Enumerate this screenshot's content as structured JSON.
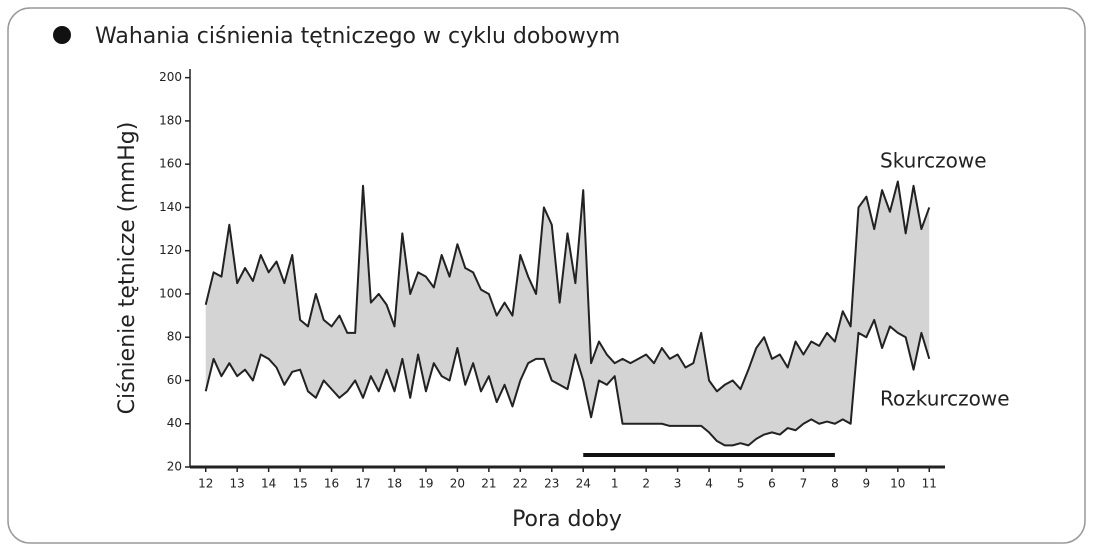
{
  "chart_data": {
    "type": "line",
    "title": "Wahania ciśnienia tętniczego w cyklu dobowym",
    "y_label": "Ciśnienie tętnicze (mmHg)",
    "x_label": "Pora doby",
    "annotations": [
      "Skurczowe",
      "Rozkurczowe"
    ],
    "x": [
      0,
      0.25,
      0.5,
      0.75,
      1,
      1.25,
      1.5,
      1.75,
      2,
      2.25,
      2.5,
      2.75,
      3,
      3.25,
      3.5,
      3.75,
      4,
      4.25,
      4.5,
      4.75,
      5,
      5.25,
      5.5,
      5.75,
      6,
      6.25,
      6.5,
      6.75,
      7,
      7.25,
      7.5,
      7.75,
      8,
      8.25,
      8.5,
      8.75,
      9,
      9.25,
      9.5,
      9.75,
      10,
      10.25,
      10.5,
      10.75,
      11,
      11.25,
      11.5,
      11.75,
      12,
      12.25,
      12.5,
      12.75,
      13,
      13.25,
      13.5,
      13.75,
      14,
      14.25,
      14.5,
      14.75,
      15,
      15.25,
      15.5,
      15.75,
      16,
      16.25,
      16.5,
      16.75,
      17,
      17.25,
      17.5,
      17.75,
      18,
      18.25,
      18.5,
      18.75,
      19,
      19.25,
      19.5,
      19.75,
      20,
      20.25,
      20.5,
      20.75,
      21,
      21.25,
      21.5,
      21.75,
      22,
      22.25,
      22.5,
      22.75,
      23
    ],
    "series": [
      {
        "name": "Skurczowe",
        "color": "#222222",
        "values": [
          95,
          110,
          108,
          132,
          105,
          112,
          106,
          118,
          110,
          115,
          105,
          118,
          88,
          85,
          100,
          88,
          85,
          90,
          82,
          82,
          150,
          96,
          100,
          95,
          85,
          128,
          100,
          110,
          108,
          103,
          118,
          108,
          123,
          112,
          110,
          102,
          100,
          90,
          96,
          90,
          118,
          108,
          100,
          140,
          132,
          96,
          128,
          105,
          148,
          68,
          78,
          72,
          68,
          70,
          68,
          70,
          72,
          68,
          75,
          70,
          72,
          66,
          68,
          82,
          60,
          55,
          58,
          60,
          56,
          65,
          75,
          80,
          70,
          72,
          66,
          78,
          72,
          78,
          76,
          82,
          78,
          92,
          85,
          140,
          145,
          130,
          148,
          138,
          152,
          128,
          150,
          130,
          140
        ]
      },
      {
        "name": "Rozkurczowe",
        "color": "#222222",
        "values": [
          55,
          70,
          62,
          68,
          62,
          65,
          60,
          72,
          70,
          66,
          58,
          64,
          65,
          55,
          52,
          60,
          56,
          52,
          55,
          60,
          52,
          62,
          55,
          65,
          55,
          70,
          52,
          72,
          55,
          68,
          62,
          60,
          75,
          58,
          68,
          55,
          62,
          50,
          58,
          48,
          60,
          68,
          70,
          70,
          60,
          58,
          56,
          72,
          60,
          43,
          60,
          58,
          62,
          40,
          40,
          40,
          40,
          40,
          40,
          39,
          39,
          39,
          39,
          39,
          36,
          32,
          30,
          30,
          31,
          30,
          33,
          35,
          36,
          35,
          38,
          37,
          40,
          42,
          40,
          41,
          40,
          42,
          40,
          82,
          80,
          88,
          75,
          85,
          82,
          80,
          65,
          82,
          70
        ]
      }
    ],
    "fill_color": "#d4d4d4",
    "night_bar": [
      12,
      20
    ],
    "xlim": [
      -0.5,
      23.5
    ],
    "xticks": [
      {
        "value": 0,
        "label": "12"
      },
      {
        "value": 1,
        "label": "13"
      },
      {
        "value": 2,
        "label": "14"
      },
      {
        "value": 3,
        "label": "15"
      },
      {
        "value": 4,
        "label": "16"
      },
      {
        "value": 5,
        "label": "17"
      },
      {
        "value": 6,
        "label": "18"
      },
      {
        "value": 7,
        "label": "19"
      },
      {
        "value": 8,
        "label": "20"
      },
      {
        "value": 9,
        "label": "21"
      },
      {
        "value": 10,
        "label": "22"
      },
      {
        "value": 11,
        "label": "23"
      },
      {
        "value": 12,
        "label": "24"
      },
      {
        "value": 13,
        "label": "1"
      },
      {
        "value": 14,
        "label": "2"
      },
      {
        "value": 15,
        "label": "3"
      },
      {
        "value": 16,
        "label": "4"
      },
      {
        "value": 17,
        "label": "5"
      },
      {
        "value": 18,
        "label": "6"
      },
      {
        "value": 19,
        "label": "7"
      },
      {
        "value": 20,
        "label": "8"
      },
      {
        "value": 21,
        "label": "9"
      },
      {
        "value": 22,
        "label": "10"
      },
      {
        "value": 23,
        "label": "11"
      }
    ],
    "ylim": [
      20,
      204
    ],
    "yticks": [
      20,
      40,
      60,
      80,
      100,
      120,
      140,
      160,
      180,
      200
    ]
  }
}
